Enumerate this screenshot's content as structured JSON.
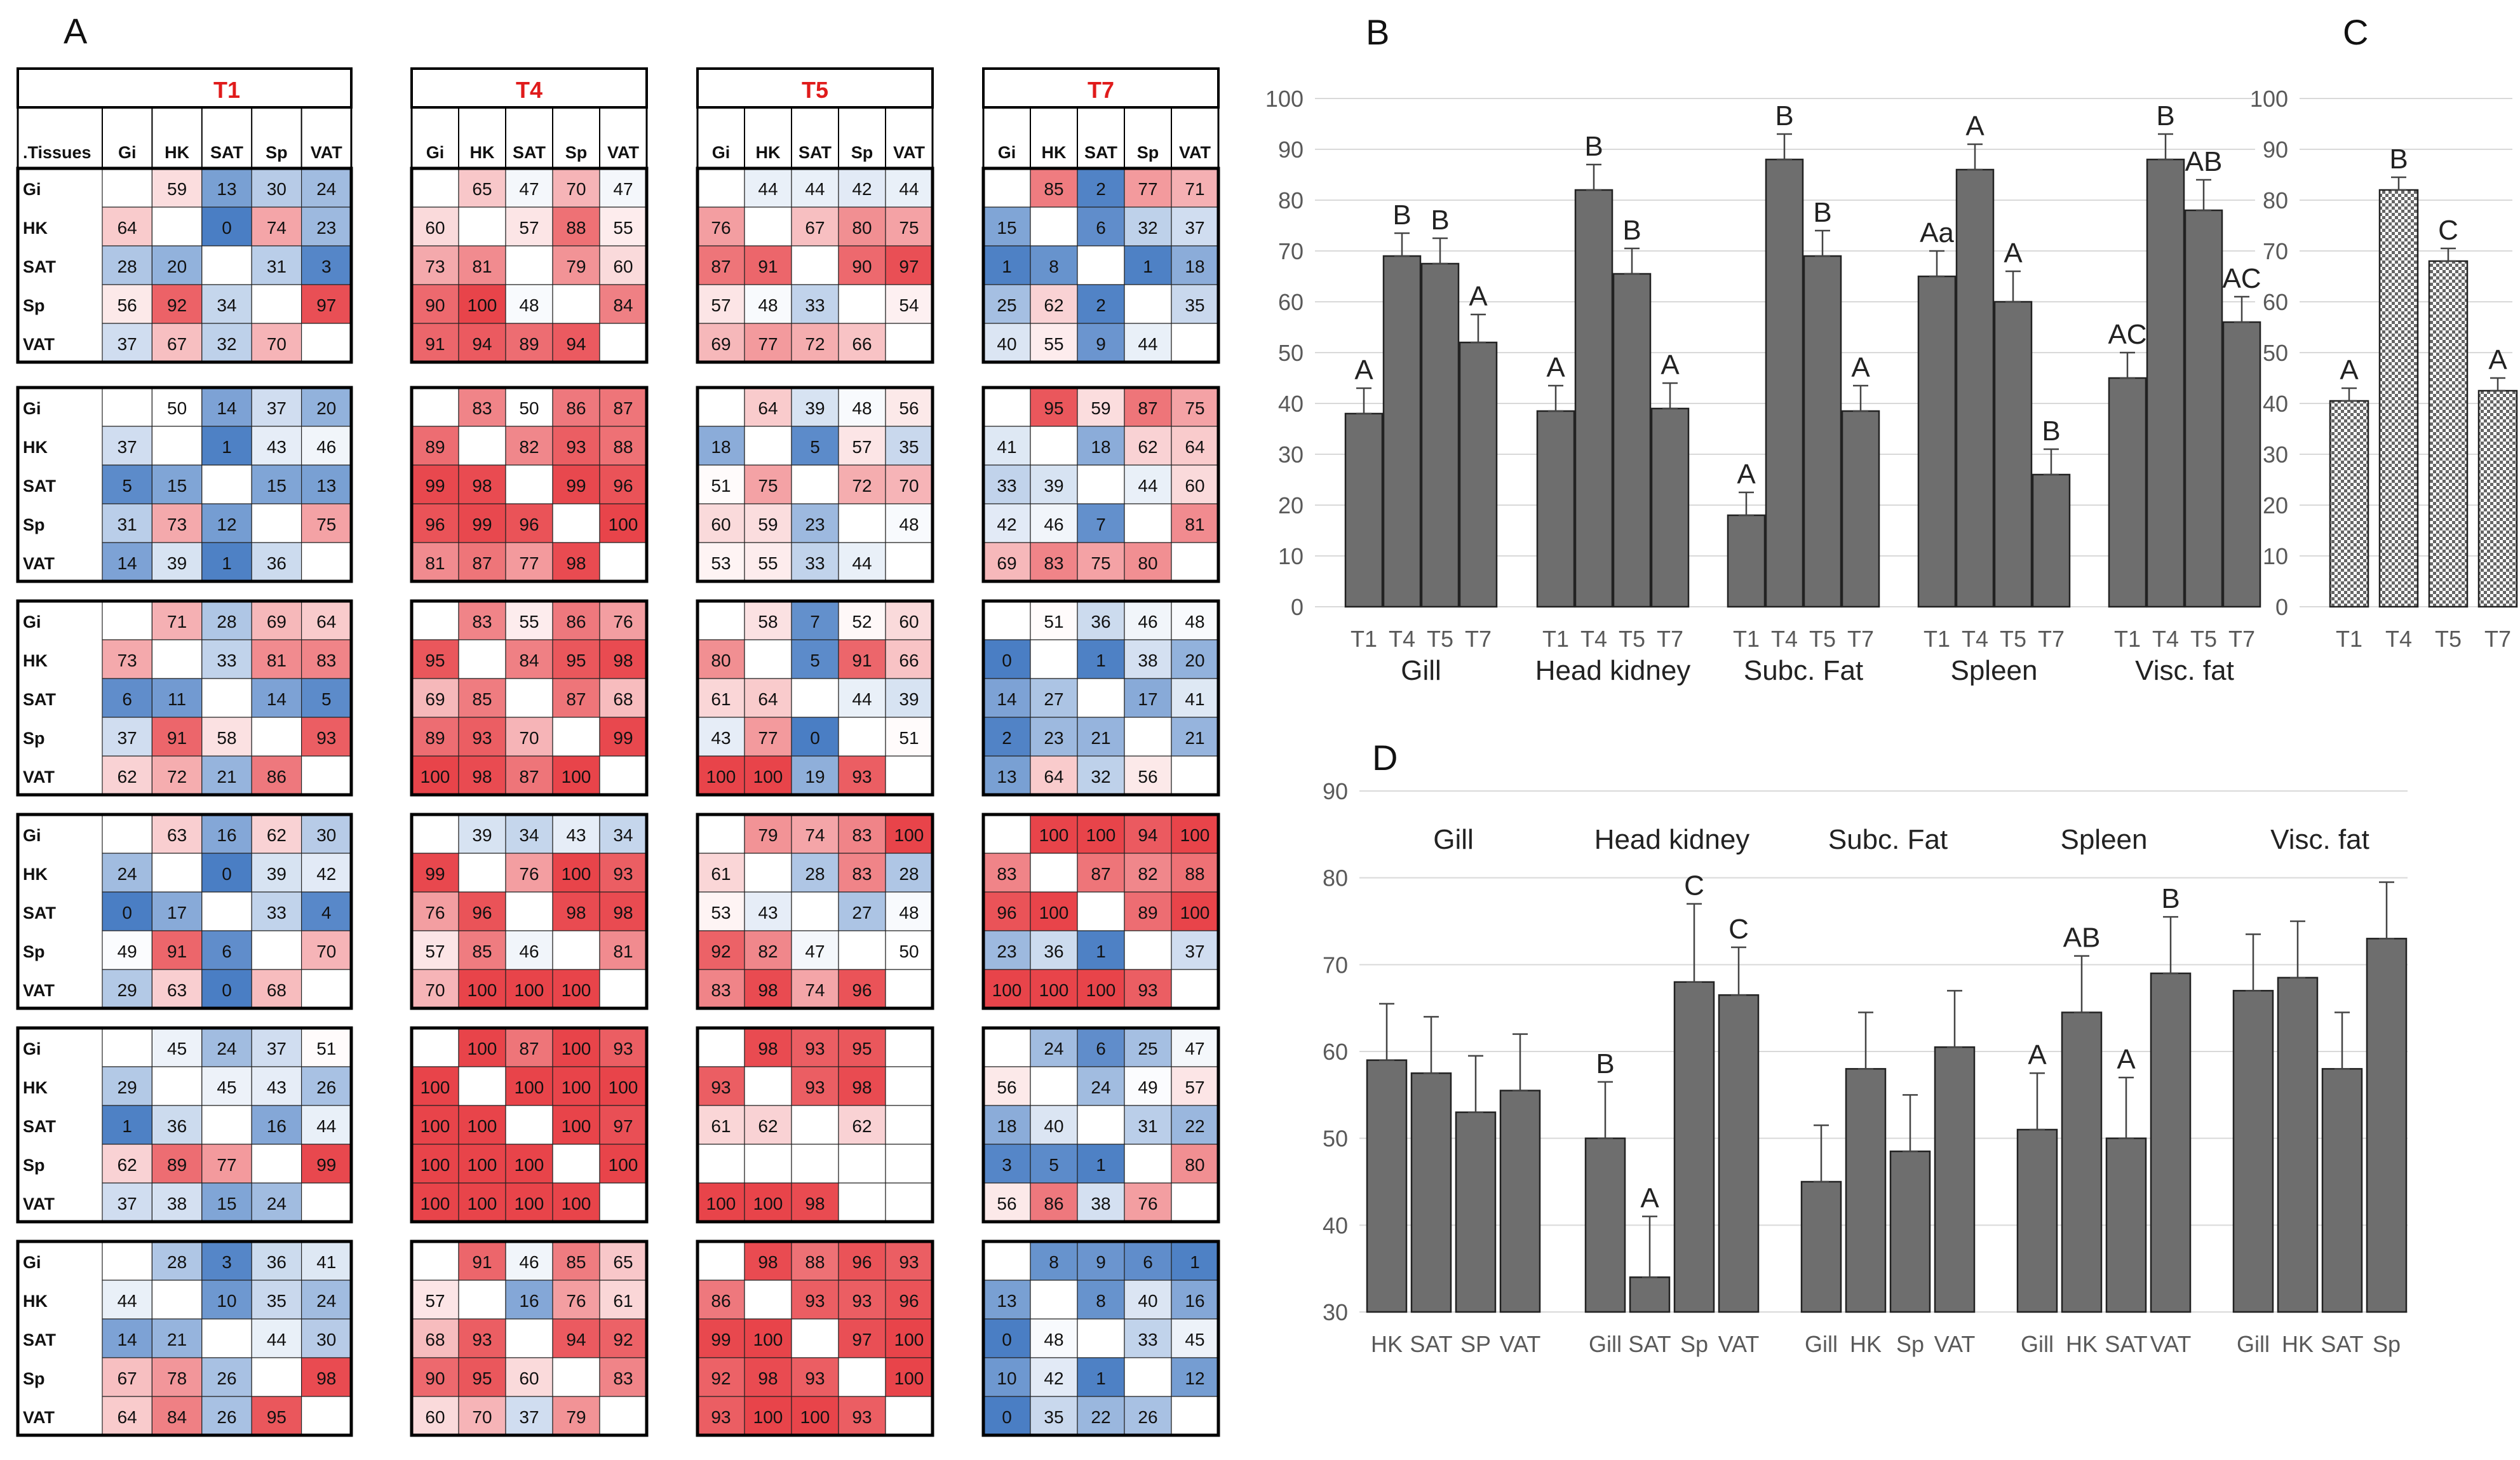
{
  "panel_labels": {
    "A": "A",
    "B": "B",
    "C": "C",
    "D": "D"
  },
  "heatmap": {
    "corner_label": ".Tissues",
    "tissues": [
      "Gi",
      "HK",
      "SAT",
      "Sp",
      "VAT"
    ],
    "timepoints": [
      "T1",
      "T4",
      "T5",
      "T7"
    ],
    "color_scale": {
      "low": "#4a7ec4",
      "mid": "#ffffff",
      "high": "#e8444a"
    },
    "blocks": [
      [
        [
          [
            null,
            59,
            13,
            30,
            24
          ],
          [
            64,
            null,
            0,
            74,
            23
          ],
          [
            28,
            20,
            null,
            31,
            3
          ],
          [
            56,
            92,
            34,
            null,
            97
          ],
          [
            37,
            67,
            32,
            70,
            null
          ]
        ],
        [
          [
            null,
            65,
            47,
            70,
            47
          ],
          [
            60,
            null,
            57,
            88,
            55
          ],
          [
            73,
            81,
            null,
            79,
            60
          ],
          [
            90,
            100,
            48,
            null,
            84
          ],
          [
            91,
            94,
            89,
            94,
            null
          ]
        ],
        [
          [
            null,
            44,
            44,
            42,
            44
          ],
          [
            76,
            null,
            67,
            80,
            75
          ],
          [
            87,
            91,
            null,
            90,
            97
          ],
          [
            57,
            48,
            33,
            null,
            54
          ],
          [
            69,
            77,
            72,
            66,
            null
          ]
        ],
        [
          [
            null,
            85,
            2,
            77,
            71
          ],
          [
            15,
            null,
            6,
            32,
            37
          ],
          [
            1,
            8,
            null,
            1,
            18
          ],
          [
            25,
            62,
            2,
            null,
            35
          ],
          [
            40,
            55,
            9,
            44,
            null
          ]
        ]
      ],
      [
        [
          [
            null,
            50,
            14,
            37,
            20
          ],
          [
            37,
            null,
            1,
            43,
            46
          ],
          [
            5,
            15,
            null,
            15,
            13
          ],
          [
            31,
            73,
            12,
            null,
            75
          ],
          [
            14,
            39,
            1,
            36,
            null
          ]
        ],
        [
          [
            null,
            83,
            50,
            86,
            87
          ],
          [
            89,
            null,
            82,
            93,
            88
          ],
          [
            99,
            98,
            null,
            99,
            96
          ],
          [
            96,
            99,
            96,
            null,
            100
          ],
          [
            81,
            87,
            77,
            98,
            null
          ]
        ],
        [
          [
            null,
            64,
            39,
            48,
            56
          ],
          [
            18,
            null,
            5,
            57,
            35
          ],
          [
            51,
            75,
            null,
            72,
            70
          ],
          [
            60,
            59,
            23,
            null,
            48
          ],
          [
            53,
            55,
            33,
            44,
            null
          ]
        ],
        [
          [
            null,
            95,
            59,
            87,
            75
          ],
          [
            41,
            null,
            18,
            62,
            64
          ],
          [
            33,
            39,
            null,
            44,
            60
          ],
          [
            42,
            46,
            7,
            null,
            81
          ],
          [
            69,
            83,
            75,
            80,
            null
          ]
        ]
      ],
      [
        [
          [
            null,
            71,
            28,
            69,
            64
          ],
          [
            73,
            null,
            33,
            81,
            83
          ],
          [
            6,
            11,
            null,
            14,
            5
          ],
          [
            37,
            91,
            58,
            null,
            93
          ],
          [
            62,
            72,
            21,
            86,
            null
          ]
        ],
        [
          [
            null,
            83,
            55,
            86,
            76
          ],
          [
            95,
            null,
            84,
            95,
            98
          ],
          [
            69,
            85,
            null,
            87,
            68
          ],
          [
            89,
            93,
            70,
            null,
            99
          ],
          [
            100,
            98,
            87,
            100,
            null
          ]
        ],
        [
          [
            null,
            58,
            7,
            52,
            60
          ],
          [
            80,
            null,
            5,
            91,
            66
          ],
          [
            61,
            64,
            null,
            44,
            39
          ],
          [
            43,
            77,
            0,
            null,
            51
          ],
          [
            100,
            100,
            19,
            93,
            null
          ]
        ],
        [
          [
            null,
            51,
            36,
            46,
            48
          ],
          [
            0,
            null,
            1,
            38,
            20
          ],
          [
            14,
            27,
            null,
            17,
            41
          ],
          [
            2,
            23,
            21,
            null,
            21
          ],
          [
            13,
            64,
            32,
            56,
            null
          ]
        ]
      ],
      [
        [
          [
            null,
            63,
            16,
            62,
            30
          ],
          [
            24,
            null,
            0,
            39,
            42
          ],
          [
            0,
            17,
            null,
            33,
            4
          ],
          [
            49,
            91,
            6,
            null,
            70
          ],
          [
            29,
            63,
            0,
            68,
            null
          ]
        ],
        [
          [
            null,
            39,
            34,
            43,
            34
          ],
          [
            99,
            null,
            76,
            100,
            93
          ],
          [
            76,
            96,
            null,
            98,
            98
          ],
          [
            57,
            85,
            46,
            null,
            81
          ],
          [
            70,
            100,
            100,
            100,
            null
          ]
        ],
        [
          [
            null,
            79,
            74,
            83,
            100
          ],
          [
            61,
            null,
            28,
            83,
            28
          ],
          [
            53,
            43,
            null,
            27,
            48
          ],
          [
            92,
            82,
            47,
            null,
            50
          ],
          [
            83,
            98,
            74,
            96,
            null
          ]
        ],
        [
          [
            null,
            100,
            100,
            94,
            100
          ],
          [
            83,
            null,
            87,
            82,
            88
          ],
          [
            96,
            100,
            null,
            89,
            100
          ],
          [
            23,
            36,
            1,
            null,
            37
          ],
          [
            100,
            100,
            100,
            93,
            null
          ]
        ]
      ],
      [
        [
          [
            null,
            45,
            24,
            37,
            51
          ],
          [
            29,
            null,
            45,
            43,
            26
          ],
          [
            1,
            36,
            null,
            16,
            44
          ],
          [
            62,
            89,
            77,
            null,
            99
          ],
          [
            37,
            38,
            15,
            24,
            null
          ]
        ],
        [
          [
            null,
            100,
            87,
            100,
            93
          ],
          [
            100,
            null,
            100,
            100,
            100
          ],
          [
            100,
            100,
            null,
            100,
            97
          ],
          [
            100,
            100,
            100,
            null,
            100
          ],
          [
            100,
            100,
            100,
            100,
            null
          ]
        ],
        [
          [
            null,
            98,
            93,
            95,
            null
          ],
          [
            93,
            null,
            93,
            98,
            null
          ],
          [
            61,
            62,
            null,
            62,
            null
          ],
          [
            null,
            null,
            null,
            null,
            null
          ],
          [
            100,
            100,
            98,
            null,
            null
          ]
        ],
        [
          [
            null,
            24,
            6,
            25,
            47
          ],
          [
            56,
            null,
            24,
            49,
            57
          ],
          [
            18,
            40,
            null,
            31,
            22
          ],
          [
            3,
            5,
            1,
            null,
            80
          ],
          [
            56,
            86,
            38,
            76,
            null
          ]
        ]
      ],
      [
        [
          [
            null,
            28,
            3,
            36,
            41
          ],
          [
            44,
            null,
            10,
            35,
            24
          ],
          [
            14,
            21,
            null,
            44,
            30
          ],
          [
            67,
            78,
            26,
            null,
            98
          ],
          [
            64,
            84,
            26,
            95,
            null
          ]
        ],
        [
          [
            null,
            91,
            46,
            85,
            65
          ],
          [
            57,
            null,
            16,
            76,
            61
          ],
          [
            68,
            93,
            null,
            94,
            92
          ],
          [
            90,
            95,
            60,
            null,
            83
          ],
          [
            60,
            70,
            37,
            79,
            null
          ]
        ],
        [
          [
            null,
            98,
            88,
            96,
            93
          ],
          [
            86,
            null,
            93,
            93,
            96
          ],
          [
            99,
            100,
            null,
            97,
            100
          ],
          [
            92,
            98,
            93,
            null,
            100
          ],
          [
            93,
            100,
            100,
            93,
            null
          ]
        ],
        [
          [
            null,
            8,
            9,
            6,
            1
          ],
          [
            13,
            null,
            8,
            40,
            16
          ],
          [
            0,
            48,
            null,
            33,
            45
          ],
          [
            10,
            42,
            1,
            null,
            12
          ],
          [
            0,
            35,
            22,
            26,
            null
          ]
        ]
      ]
    ]
  },
  "chart_data": [
    {
      "panel": "B",
      "type": "bar",
      "ylim": [
        0,
        100
      ],
      "yticks": [
        0,
        10,
        20,
        30,
        40,
        50,
        60,
        70,
        80,
        90,
        100
      ],
      "groups": [
        {
          "name": "Gill",
          "categories": [
            "T1",
            "T4",
            "T5",
            "T7"
          ],
          "values": [
            38,
            69,
            67.5,
            52
          ],
          "errors": [
            5,
            4.5,
            5,
            5.5
          ],
          "letters": [
            "A",
            "B",
            "B",
            "A"
          ]
        },
        {
          "name": "Head kidney",
          "categories": [
            "T1",
            "T4",
            "T5",
            "T7"
          ],
          "values": [
            38.5,
            82,
            65.5,
            39
          ],
          "errors": [
            5,
            5,
            5,
            5
          ],
          "letters": [
            "A",
            "B",
            "B",
            "A"
          ]
        },
        {
          "name": "Subc. Fat",
          "categories": [
            "T1",
            "T4",
            "T5",
            "T7"
          ],
          "values": [
            18,
            88,
            69,
            38.5
          ],
          "errors": [
            4.5,
            5,
            5,
            5
          ],
          "letters": [
            "A",
            "B",
            "B",
            "A"
          ]
        },
        {
          "name": "Spleen",
          "categories": [
            "T1",
            "T4",
            "T5",
            "T7"
          ],
          "values": [
            65,
            86,
            60,
            26
          ],
          "errors": [
            5,
            5,
            6,
            5
          ],
          "letters": [
            "Aa",
            "A",
            "A",
            "B"
          ]
        },
        {
          "name": "Visc. fat",
          "categories": [
            "T1",
            "T4",
            "T5",
            "T7"
          ],
          "values": [
            45,
            88,
            78,
            56
          ],
          "errors": [
            5,
            5,
            6,
            5
          ],
          "letters": [
            "AC",
            "B",
            "AB",
            "AC"
          ]
        }
      ]
    },
    {
      "panel": "C",
      "type": "bar",
      "ylim": [
        0,
        100
      ],
      "yticks": [
        0,
        10,
        20,
        30,
        40,
        50,
        60,
        70,
        80,
        90,
        100
      ],
      "categories": [
        "T1",
        "T4",
        "T5",
        "T7"
      ],
      "values": [
        40.5,
        82,
        68,
        42.5
      ],
      "errors": [
        2.5,
        2.5,
        2.5,
        2.5
      ],
      "letters": [
        "A",
        "B",
        "C",
        "A"
      ]
    },
    {
      "panel": "D",
      "type": "bar",
      "ylim": [
        30,
        90
      ],
      "yticks": [
        30,
        40,
        50,
        60,
        70,
        80,
        90
      ],
      "groups": [
        {
          "name": "Gill",
          "categories": [
            "HK",
            "SAT",
            "SP",
            "VAT"
          ],
          "values": [
            59,
            57.5,
            53,
            55.5
          ],
          "errors": [
            6.5,
            6.5,
            6.5,
            6.5
          ],
          "letters": [
            "",
            "",
            "",
            ""
          ]
        },
        {
          "name": "Head kidney",
          "categories": [
            "Gill",
            "SAT",
            "Sp",
            "VAT"
          ],
          "values": [
            50,
            34,
            68,
            66.5
          ],
          "errors": [
            6.5,
            7,
            9,
            5.5
          ],
          "letters": [
            "B",
            "A",
            "C",
            "C"
          ]
        },
        {
          "name": "Subc. Fat",
          "categories": [
            "Gill",
            "HK",
            "Sp",
            "VAT"
          ],
          "values": [
            45,
            58,
            48.5,
            60.5
          ],
          "errors": [
            6.5,
            6.5,
            6.5,
            6.5
          ],
          "letters": [
            "",
            "",
            "",
            ""
          ]
        },
        {
          "name": "Spleen",
          "categories": [
            "Gill",
            "HK",
            "SAT",
            "VAT"
          ],
          "values": [
            51,
            64.5,
            50,
            69
          ],
          "errors": [
            6.5,
            6.5,
            7,
            6.5
          ],
          "letters": [
            "A",
            "AB",
            "A",
            "B"
          ]
        },
        {
          "name": "Visc. fat",
          "categories": [
            "Gill",
            "HK",
            "SAT",
            "Sp"
          ],
          "values": [
            67,
            68.5,
            58,
            73
          ],
          "errors": [
            6.5,
            6.5,
            6.5,
            6.5
          ],
          "letters": [
            "",
            "",
            "",
            ""
          ]
        }
      ]
    }
  ]
}
